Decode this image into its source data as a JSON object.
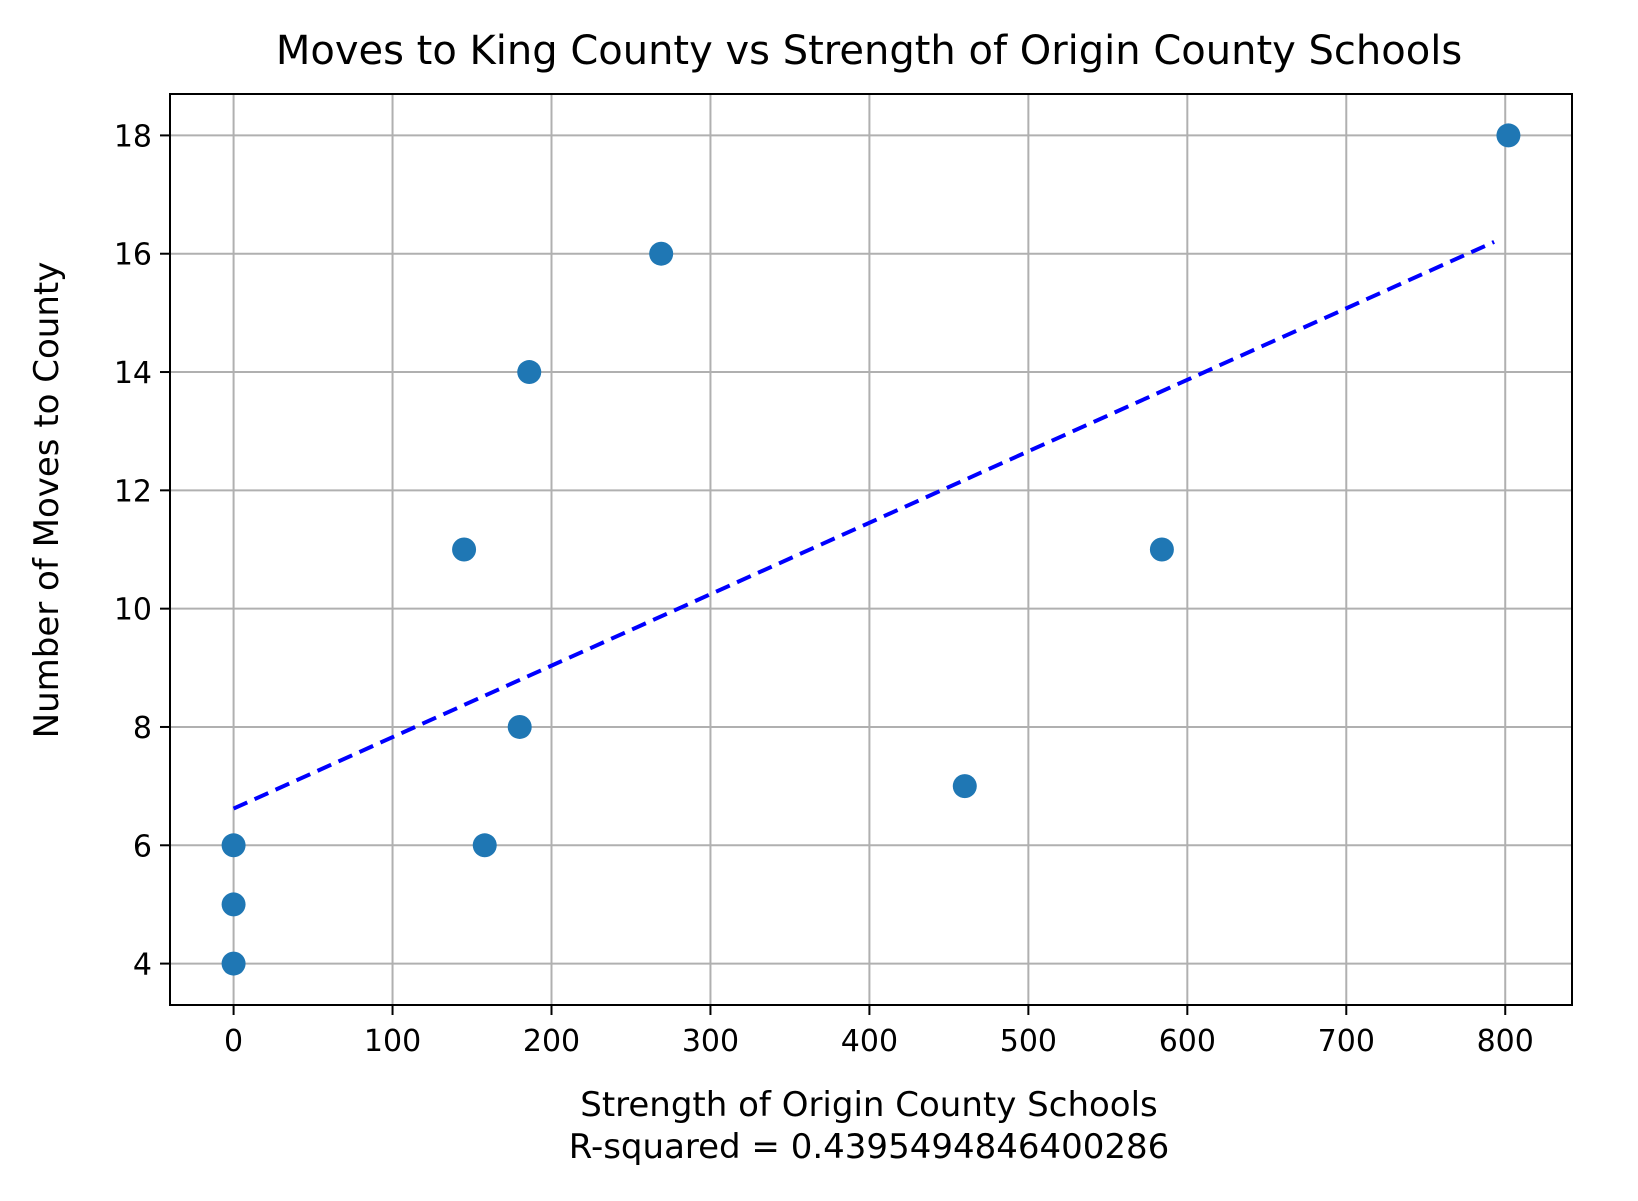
{
  "chart_data": {
    "type": "scatter",
    "title": "Moves to King County vs Strength of Origin County Schools",
    "xlabel": "Strength of Origin County Schools",
    "xlabel_line2": "R-squared = 0.4395494846400286",
    "ylabel": "Number of Moves to County",
    "xlim": [
      -40,
      842
    ],
    "ylim": [
      3.3,
      18.7
    ],
    "x_ticks": [
      0,
      100,
      200,
      300,
      400,
      500,
      600,
      700,
      800
    ],
    "y_ticks": [
      4,
      6,
      8,
      10,
      12,
      14,
      16,
      18
    ],
    "x_tick_labels": [
      "0",
      "100",
      "200",
      "300",
      "400",
      "500",
      "600",
      "700",
      "800"
    ],
    "y_tick_labels": [
      "4",
      "6",
      "8",
      "10",
      "12",
      "14",
      "16",
      "18"
    ],
    "grid": true,
    "points": [
      {
        "x": 0,
        "y": 4
      },
      {
        "x": 0,
        "y": 5
      },
      {
        "x": 0,
        "y": 6
      },
      {
        "x": 145,
        "y": 11
      },
      {
        "x": 158,
        "y": 6
      },
      {
        "x": 180,
        "y": 8
      },
      {
        "x": 186,
        "y": 14
      },
      {
        "x": 269,
        "y": 16
      },
      {
        "x": 460,
        "y": 7
      },
      {
        "x": 584,
        "y": 11
      },
      {
        "x": 802,
        "y": 18
      }
    ],
    "trendline": {
      "x": [
        0,
        793
      ],
      "y": [
        6.62,
        16.2
      ]
    },
    "colors": {
      "points": "#1f77b4",
      "trendline": "#0000ff",
      "grid": "#b0b0b0"
    }
  }
}
